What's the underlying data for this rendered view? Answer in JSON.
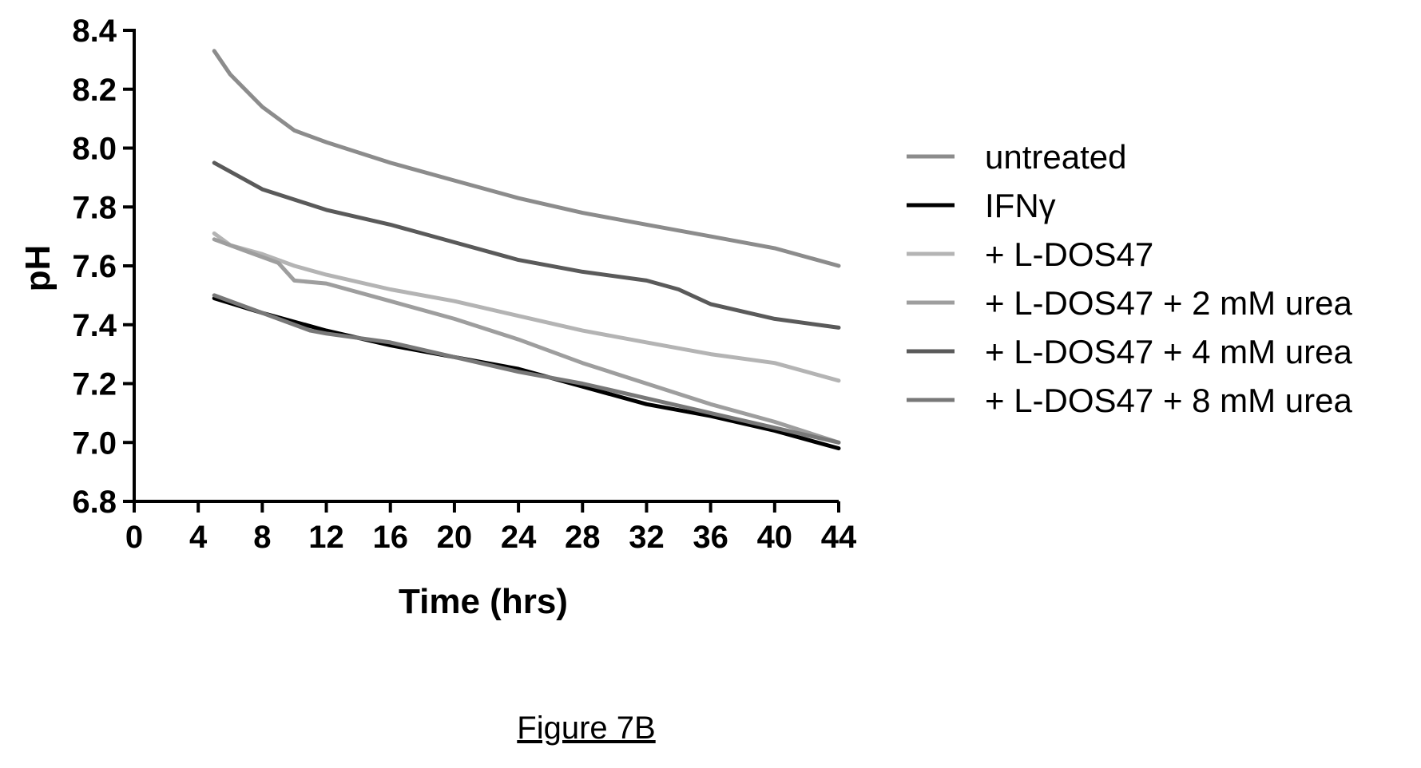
{
  "caption": "Figure 7B",
  "chart_data": {
    "type": "line",
    "xlabel": "Time (hrs)",
    "ylabel": "pH",
    "xlim": [
      0,
      44
    ],
    "ylim": [
      6.8,
      8.4
    ],
    "xticks": [
      0,
      4,
      8,
      12,
      16,
      20,
      24,
      28,
      32,
      36,
      40,
      44
    ],
    "yticks": [
      6.8,
      7.0,
      7.2,
      7.4,
      7.6,
      7.8,
      8.0,
      8.2,
      8.4
    ],
    "ytick_labels": [
      "6.8",
      "7.0",
      "7.2",
      "7.4",
      "7.6",
      "7.8",
      "8.0",
      "8.2",
      "8.4"
    ],
    "legend_position": "right",
    "series": [
      {
        "name": "untreated",
        "color": "#8c8c8c",
        "width": 5,
        "x": [
          5,
          6,
          8,
          10,
          12,
          16,
          20,
          24,
          28,
          32,
          36,
          40,
          44
        ],
        "y": [
          8.33,
          8.25,
          8.14,
          8.06,
          8.02,
          7.95,
          7.89,
          7.83,
          7.78,
          7.74,
          7.7,
          7.66,
          7.6
        ]
      },
      {
        "name": "IFNγ",
        "color": "#000000",
        "width": 5,
        "x": [
          5,
          8,
          12,
          16,
          20,
          24,
          28,
          32,
          36,
          40,
          44
        ],
        "y": [
          7.49,
          7.44,
          7.38,
          7.33,
          7.29,
          7.25,
          7.19,
          7.13,
          7.09,
          7.04,
          6.98
        ]
      },
      {
        "name": "+ L-DOS47",
        "color": "#b4b4b4",
        "width": 5,
        "x": [
          5,
          6,
          8,
          10,
          12,
          16,
          20,
          24,
          28,
          32,
          36,
          40,
          44
        ],
        "y": [
          7.71,
          7.67,
          7.64,
          7.6,
          7.57,
          7.52,
          7.48,
          7.43,
          7.38,
          7.34,
          7.3,
          7.27,
          7.21
        ]
      },
      {
        "name": "+ L-DOS47 + 2 mM urea",
        "color": "#9e9e9e",
        "width": 5,
        "x": [
          5,
          7,
          9,
          10,
          12,
          16,
          20,
          24,
          28,
          32,
          36,
          40,
          44
        ],
        "y": [
          7.69,
          7.65,
          7.61,
          7.55,
          7.54,
          7.48,
          7.42,
          7.35,
          7.27,
          7.2,
          7.13,
          7.07,
          7.0
        ]
      },
      {
        "name": "+ L-DOS47 + 4 mM urea",
        "color": "#5a5a5a",
        "width": 5,
        "x": [
          5,
          8,
          12,
          16,
          20,
          24,
          28,
          32,
          34,
          36,
          40,
          44
        ],
        "y": [
          7.95,
          7.86,
          7.79,
          7.74,
          7.68,
          7.62,
          7.58,
          7.55,
          7.52,
          7.47,
          7.42,
          7.39
        ]
      },
      {
        "name": "+ L-DOS47 + 8 mM urea",
        "color": "#787878",
        "width": 5,
        "x": [
          5,
          8,
          11,
          12,
          16,
          20,
          24,
          28,
          32,
          36,
          40,
          44
        ],
        "y": [
          7.5,
          7.44,
          7.38,
          7.37,
          7.34,
          7.29,
          7.24,
          7.2,
          7.15,
          7.1,
          7.05,
          7.0
        ]
      }
    ]
  }
}
